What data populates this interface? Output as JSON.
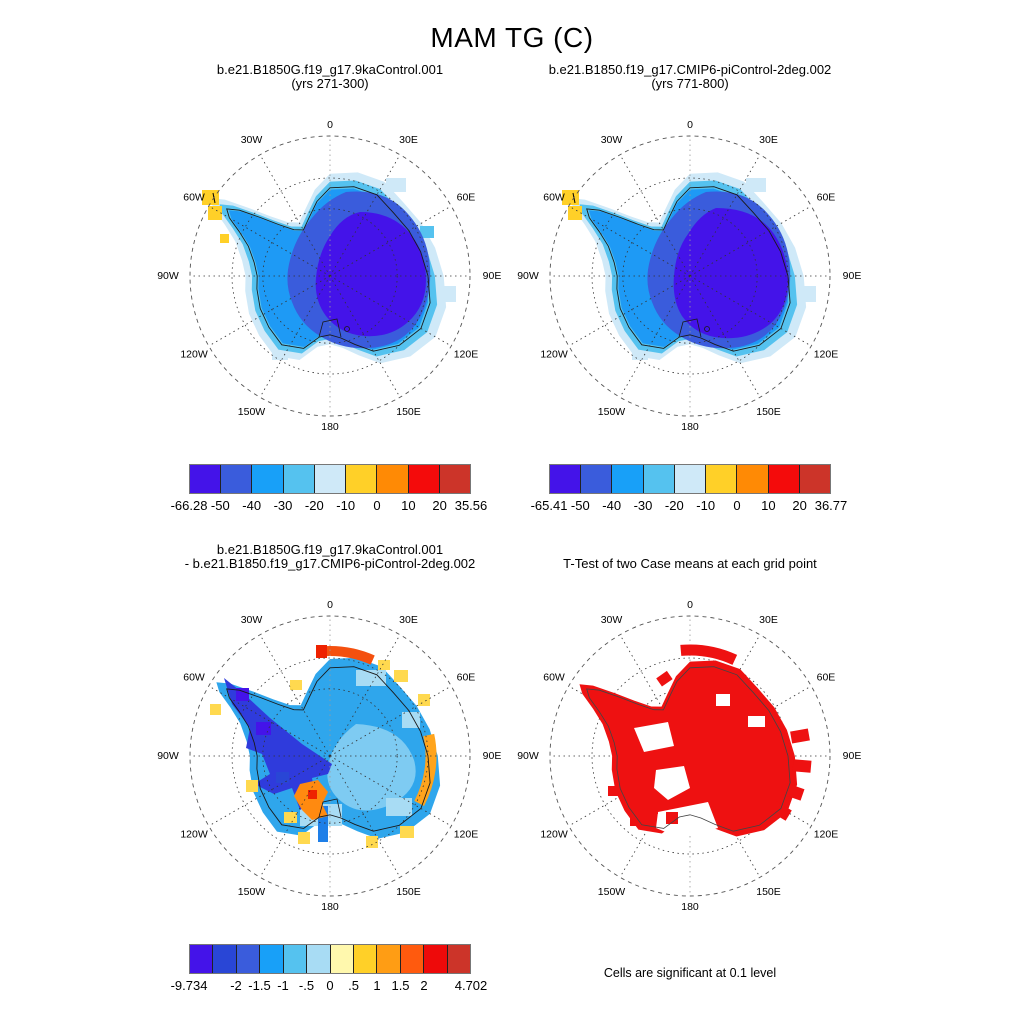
{
  "title": "MAM TG (C)",
  "compass": [
    "0",
    "30E",
    "60E",
    "90E",
    "120E",
    "150E",
    "180",
    "150W",
    "120W",
    "90W",
    "60W",
    "30W"
  ],
  "panels": {
    "case1": {
      "title1": "b.e21.B1850G.f19_g17.9kaControl.001",
      "title2": "(yrs 271-300)",
      "colorbar": {
        "colors": [
          "#4413e9",
          "#3a5cdc",
          "#18a0f8",
          "#55c2ef",
          "#cfe9f8",
          "#ffd028",
          "#ff8a05",
          "#f40b0b",
          "#cc3429"
        ],
        "ticks": [
          {
            "label": "-66.28",
            "at": 0
          },
          {
            "label": "-50",
            "at": 1
          },
          {
            "label": "-40",
            "at": 2
          },
          {
            "label": "-30",
            "at": 3
          },
          {
            "label": "-20",
            "at": 4
          },
          {
            "label": "-10",
            "at": 5
          },
          {
            "label": "0",
            "at": 6
          },
          {
            "label": "10",
            "at": 7
          },
          {
            "label": "20",
            "at": 8
          },
          {
            "label": "35.56",
            "at": 9
          }
        ]
      }
    },
    "case2": {
      "title1": "b.e21.B1850.f19_g17.CMIP6-piControl-2deg.002",
      "title2": "(yrs 771-800)",
      "colorbar": {
        "colors": [
          "#4413e9",
          "#3a5cdc",
          "#18a0f8",
          "#55c2ef",
          "#cfe9f8",
          "#ffd028",
          "#ff8a05",
          "#f40b0b",
          "#cc3429"
        ],
        "ticks": [
          {
            "label": "-65.41",
            "at": 0
          },
          {
            "label": "-50",
            "at": 1
          },
          {
            "label": "-40",
            "at": 2
          },
          {
            "label": "-30",
            "at": 3
          },
          {
            "label": "-20",
            "at": 4
          },
          {
            "label": "-10",
            "at": 5
          },
          {
            "label": "0",
            "at": 6
          },
          {
            "label": "10",
            "at": 7
          },
          {
            "label": "20",
            "at": 8
          },
          {
            "label": "36.77",
            "at": 9
          }
        ]
      }
    },
    "diff": {
      "title1": "b.e21.B1850G.f19_g17.9kaControl.001",
      "title2": "- b.e21.B1850.f19_g17.CMIP6-piControl-2deg.002",
      "colorbar": {
        "colors": [
          "#4413e9",
          "#2946d6",
          "#3a5cdc",
          "#18a0f8",
          "#55c2ef",
          "#a8dcf4",
          "#fff8ad",
          "#ffd028",
          "#ff9d14",
          "#ff5a0e",
          "#ee0a0a",
          "#cc3429"
        ],
        "ticks": [
          {
            "label": "-9.734",
            "at": 0
          },
          {
            "label": "-2",
            "at": 2
          },
          {
            "label": "-1.5",
            "at": 3
          },
          {
            "label": "-1",
            "at": 4
          },
          {
            "label": "-.5",
            "at": 5
          },
          {
            "label": "0",
            "at": 6
          },
          {
            "label": ".5",
            "at": 7
          },
          {
            "label": "1",
            "at": 8
          },
          {
            "label": "1.5",
            "at": 9
          },
          {
            "label": "2",
            "at": 10
          },
          {
            "label": "4.702",
            "at": 12
          }
        ]
      }
    },
    "ttest": {
      "title1": "T-Test of two Case means at each grid point",
      "caption": "Cells are significant at 0.1 level",
      "significant_color": "#ee1111"
    }
  },
  "chart_data": [
    {
      "type": "heatmap",
      "subtype": "south-polar-stereographic-map",
      "region": "Antarctica",
      "panel": "top-left",
      "title": "b.e21.B1850G.f19_g17.9kaControl.001",
      "subtitle": "(yrs 271-300)",
      "variable": "MAM TG",
      "units": "C",
      "min": -66.28,
      "max": 35.56,
      "contour_levels": [
        -50,
        -40,
        -30,
        -20,
        -10,
        0,
        10,
        20
      ],
      "palette": [
        "#4413e9",
        "#3a5cdc",
        "#18a0f8",
        "#55c2ef",
        "#cfe9f8",
        "#ffd028",
        "#ff8a05",
        "#f40b0b",
        "#cc3429"
      ],
      "longitude_labels": [
        "0",
        "30E",
        "60E",
        "90E",
        "120E",
        "150E",
        "180",
        "150W",
        "120W",
        "90W",
        "60W",
        "30W"
      ],
      "grid": "dashed lat/lon graticule, 30 deg meridians"
    },
    {
      "type": "heatmap",
      "subtype": "south-polar-stereographic-map",
      "region": "Antarctica",
      "panel": "top-right",
      "title": "b.e21.B1850.f19_g17.CMIP6-piControl-2deg.002",
      "subtitle": "(yrs 771-800)",
      "variable": "MAM TG",
      "units": "C",
      "min": -65.41,
      "max": 36.77,
      "contour_levels": [
        -50,
        -40,
        -30,
        -20,
        -10,
        0,
        10,
        20
      ],
      "palette": [
        "#4413e9",
        "#3a5cdc",
        "#18a0f8",
        "#55c2ef",
        "#cfe9f8",
        "#ffd028",
        "#ff8a05",
        "#f40b0b",
        "#cc3429"
      ],
      "longitude_labels": [
        "0",
        "30E",
        "60E",
        "90E",
        "120E",
        "150E",
        "180",
        "150W",
        "120W",
        "90W",
        "60W",
        "30W"
      ]
    },
    {
      "type": "heatmap",
      "subtype": "south-polar-stereographic-map",
      "region": "Antarctica",
      "panel": "bottom-left",
      "title": "b.e21.B1850G.f19_g17.9kaControl.001 - b.e21.B1850.f19_g17.CMIP6-piControl-2deg.002",
      "variable": "MAM TG difference",
      "units": "C",
      "min": -9.734,
      "max": 4.702,
      "contour_levels": [
        -2,
        -1.5,
        -1,
        -0.5,
        0,
        0.5,
        1,
        1.5,
        2
      ],
      "palette": [
        "#4413e9",
        "#2946d6",
        "#3a5cdc",
        "#18a0f8",
        "#55c2ef",
        "#a8dcf4",
        "#fff8ad",
        "#ffd028",
        "#ff9d14",
        "#ff5a0e",
        "#ee0a0a",
        "#cc3429"
      ],
      "longitude_labels": [
        "0",
        "30E",
        "60E",
        "90E",
        "120E",
        "150E",
        "180",
        "150W",
        "120W",
        "90W",
        "60W",
        "30W"
      ]
    },
    {
      "type": "map",
      "subtype": "south-polar-stereographic-map",
      "region": "Antarctica",
      "panel": "bottom-right",
      "title": "T-Test of two Case means at each grid point",
      "note": "Cells are significant at 0.1 level",
      "significant_color": "#ee1111",
      "longitude_labels": [
        "0",
        "30E",
        "60E",
        "90E",
        "120E",
        "150E",
        "180",
        "150W",
        "120W",
        "90W",
        "60W",
        "30W"
      ]
    }
  ]
}
